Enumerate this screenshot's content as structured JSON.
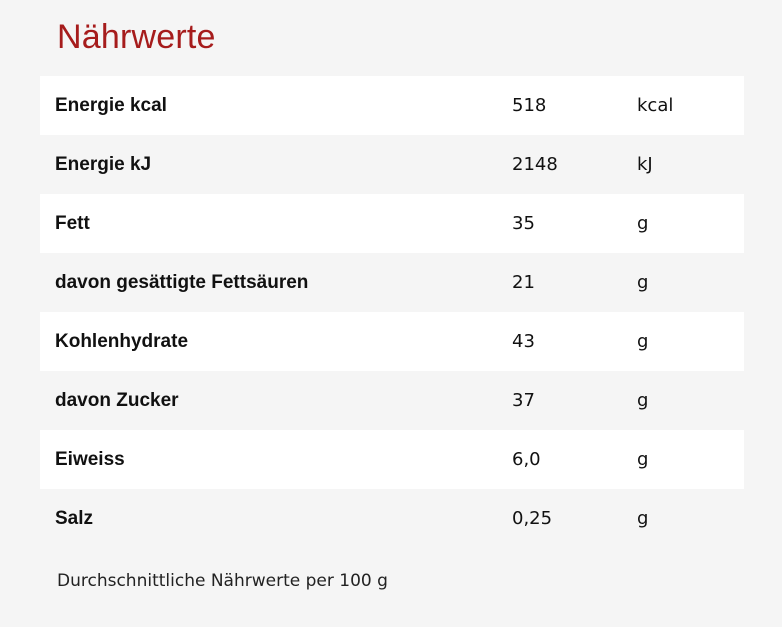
{
  "title": "Nährwerte",
  "rows": [
    {
      "label": "Energie kcal",
      "value": "518",
      "unit": "kcal"
    },
    {
      "label": "Energie kJ",
      "value": "2148",
      "unit": "kJ"
    },
    {
      "label": "Fett",
      "value": "35",
      "unit": "g"
    },
    {
      "label": "davon gesättigte Fettsäuren",
      "value": "21",
      "unit": "g"
    },
    {
      "label": "Kohlenhydrate",
      "value": "43",
      "unit": "g"
    },
    {
      "label": "davon Zucker",
      "value": "37",
      "unit": "g"
    },
    {
      "label": "Eiweiss",
      "value": "6,0",
      "unit": "g"
    },
    {
      "label": "Salz",
      "value": "0,25",
      "unit": "g"
    }
  ],
  "footnote": "Durchschnittliche Nährwerte per 100 g",
  "colors": {
    "title": "#a61c1c",
    "row_shaded": "#ffffff",
    "background": "#f5f5f5"
  }
}
